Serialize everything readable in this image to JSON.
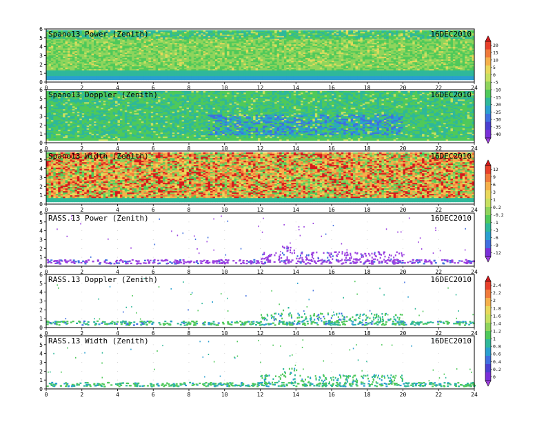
{
  "figure": {
    "date_label": "16DEC2010"
  },
  "chart_data": [
    {
      "type": "heatmap",
      "title": "Spano13 Power (Zenith)",
      "date": "16DEC2010",
      "xlabel": "",
      "ylabel": "",
      "xlim": [
        0,
        24
      ],
      "ylim": [
        0,
        6
      ],
      "x_ticks": [
        0,
        2,
        4,
        6,
        8,
        10,
        12,
        14,
        16,
        18,
        20,
        22,
        24
      ],
      "y_ticks": [
        0,
        1,
        2,
        3,
        4,
        5,
        6
      ],
      "fill": "dense",
      "colorbar": "a",
      "description_levels": {
        "near_ground": "blue-green",
        "mid": "green with yellow streaks"
      }
    },
    {
      "type": "heatmap",
      "title": "Spano13 Doppler (Zenith)",
      "date": "16DEC2010",
      "xlabel": "",
      "ylabel": "",
      "xlim": [
        0,
        24
      ],
      "ylim": [
        0,
        6
      ],
      "x_ticks": [
        0,
        2,
        4,
        6,
        8,
        10,
        12,
        14,
        16,
        18,
        20,
        22,
        24
      ],
      "y_ticks": [
        0,
        1,
        2,
        3,
        4,
        5,
        6
      ],
      "fill": "dense",
      "colorbar": "a"
    },
    {
      "type": "heatmap",
      "title": "Spano13 Width (Zenith)",
      "date": "16DEC2010",
      "xlabel": "",
      "ylabel": "",
      "xlim": [
        0,
        24
      ],
      "ylim": [
        0,
        6
      ],
      "x_ticks": [
        0,
        2,
        4,
        6,
        8,
        10,
        12,
        14,
        16,
        18,
        20,
        22,
        24
      ],
      "y_ticks": [
        0,
        1,
        2,
        3,
        4,
        5,
        6
      ],
      "fill": "dense",
      "colorbar": "b"
    },
    {
      "type": "heatmap",
      "title": "RASS.13 Power (Zenith)",
      "date": "16DEC2010",
      "xlabel": "",
      "ylabel": "",
      "xlim": [
        0,
        24
      ],
      "ylim": [
        0,
        6
      ],
      "x_ticks": [
        0,
        2,
        4,
        6,
        8,
        10,
        12,
        14,
        16,
        18,
        20,
        22,
        24
      ],
      "y_ticks": [
        0,
        1,
        2,
        3,
        4,
        5,
        6
      ],
      "fill": "sparse",
      "colorbar": "b"
    },
    {
      "type": "heatmap",
      "title": "RASS.13 Doppler (Zenith)",
      "date": "16DEC2010",
      "xlabel": "",
      "ylabel": "",
      "xlim": [
        0,
        24
      ],
      "ylim": [
        0,
        6
      ],
      "x_ticks": [
        0,
        2,
        4,
        6,
        8,
        10,
        12,
        14,
        16,
        18,
        20,
        22,
        24
      ],
      "y_ticks": [
        0,
        1,
        2,
        3,
        4,
        5,
        6
      ],
      "fill": "sparse",
      "colorbar": "c"
    },
    {
      "type": "heatmap",
      "title": "RASS.13 Width (Zenith)",
      "date": "16DEC2010",
      "xlabel": "",
      "ylabel": "",
      "xlim": [
        0,
        24
      ],
      "ylim": [
        0,
        6
      ],
      "x_ticks": [
        0,
        2,
        4,
        6,
        8,
        10,
        12,
        14,
        16,
        18,
        20,
        22,
        24
      ],
      "y_ticks": [
        0,
        1,
        2,
        3,
        4,
        5,
        6
      ],
      "fill": "sparse",
      "colorbar": "c"
    }
  ],
  "colorbars": {
    "a": {
      "labels": [
        "20",
        "15",
        "10",
        "5",
        "0",
        "-5",
        "-10",
        "-15",
        "-20",
        "-25",
        "-30",
        "-35",
        "-40"
      ],
      "colors": [
        "#d7191c",
        "#e8402a",
        "#f07a3a",
        "#f5b04a",
        "#e9d85a",
        "#c7e060",
        "#8fd45c",
        "#4fc95a",
        "#2fb89a",
        "#2a9fd0",
        "#3f6fe0",
        "#4a3fd0",
        "#7a2fd8",
        "#a040e0"
      ]
    },
    "b": {
      "labels": [
        "12",
        "9",
        "6",
        "3",
        "1",
        "0.2",
        "-0.2",
        "-1",
        "-3",
        "-6",
        "-9",
        "-12"
      ],
      "colors": [
        "#d7191c",
        "#e8402a",
        "#f07a3a",
        "#f5b04a",
        "#e9d85a",
        "#c7e060",
        "#8fd45c",
        "#4fc95a",
        "#2fb89a",
        "#2a9fd0",
        "#3f6fe0",
        "#7a2fd8",
        "#a040e0"
      ]
    },
    "c": {
      "labels": [
        "2.4",
        "2.2",
        "2",
        "1.8",
        "1.6",
        "1.4",
        "1.2",
        "1",
        "0.8",
        "0.6",
        "0.4",
        "0.2",
        "0"
      ],
      "colors": [
        "#d7191c",
        "#e8402a",
        "#f07a3a",
        "#f5b04a",
        "#e9d85a",
        "#c7e060",
        "#8fd45c",
        "#4fc95a",
        "#2fb89a",
        "#2a9fd0",
        "#3f6fe0",
        "#4a3fd0",
        "#7a2fd8",
        "#a040e0"
      ]
    }
  }
}
